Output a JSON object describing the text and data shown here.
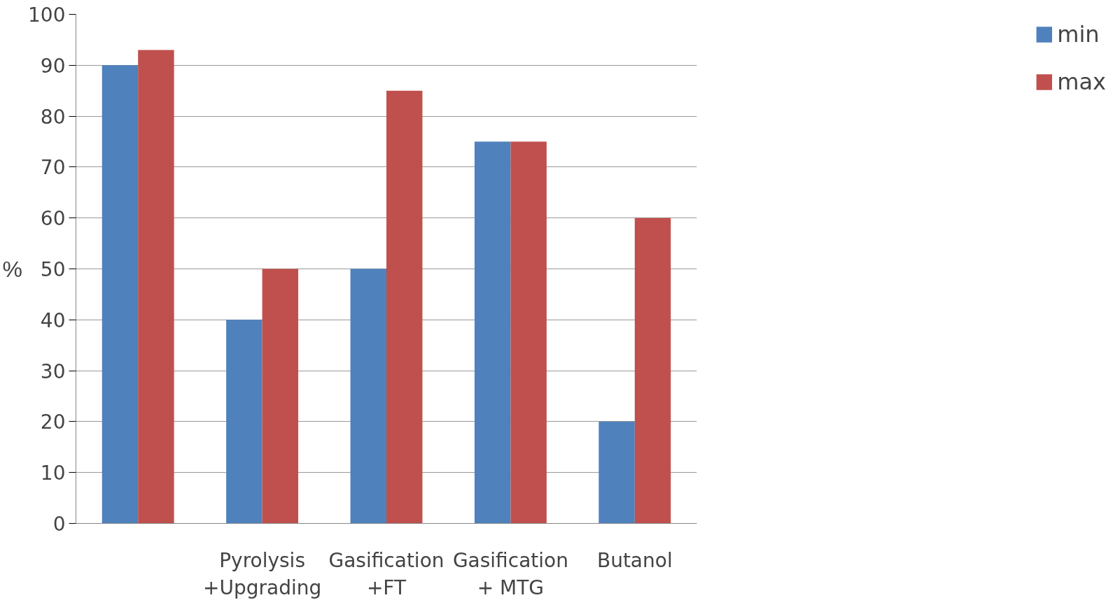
{
  "chart_data": {
    "type": "bar",
    "ylabel": "%",
    "categories": [
      null,
      "Pyrolysis +Upgrading",
      "Gasification +FT",
      "Gasification + MTG",
      "Butanol"
    ],
    "series": [
      {
        "name": "min",
        "color": "#4f81bd",
        "values": [
          90,
          40,
          50,
          75,
          20
        ]
      },
      {
        "name": "max",
        "color": "#c0504d",
        "values": [
          93,
          50,
          85,
          75,
          60
        ]
      }
    ],
    "ylim": [
      0,
      100
    ],
    "yticks": [
      0,
      10,
      20,
      30,
      40,
      50,
      60,
      70,
      80,
      90,
      100
    ],
    "grid": "y",
    "legend": "right"
  }
}
